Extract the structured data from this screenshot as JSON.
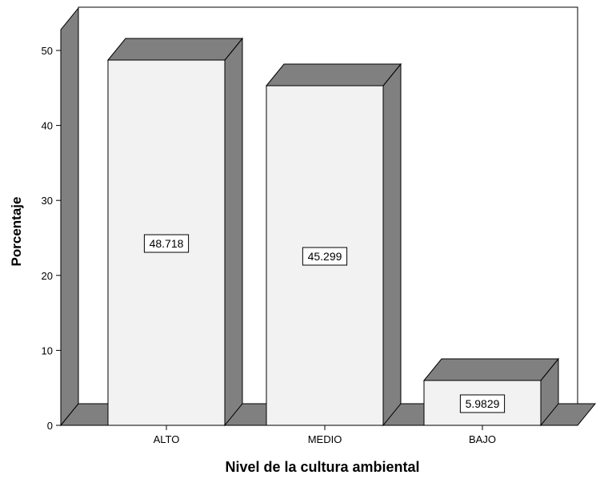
{
  "chart_data": {
    "type": "bar",
    "categories": [
      "ALTO",
      "MEDIO",
      "BAJO"
    ],
    "values": [
      48.718,
      45.299,
      5.9829
    ],
    "value_labels": [
      "48.718",
      "45.299",
      "5.9829"
    ],
    "title": "",
    "xlabel": "Nivel de la cultura ambiental",
    "ylabel": "Porcentaje",
    "ylim": [
      0,
      50
    ],
    "yticks": [
      0,
      10,
      20,
      30,
      40,
      50
    ],
    "ytick_labels": [
      "0",
      "10",
      "20",
      "30",
      "40",
      "50"
    ],
    "grid": false,
    "style": "3d",
    "colors": {
      "bar_front": "#f2f2f2",
      "bar_side": "#808080",
      "floor": "#808080",
      "wall": "#808080",
      "outline": "#000000"
    }
  }
}
